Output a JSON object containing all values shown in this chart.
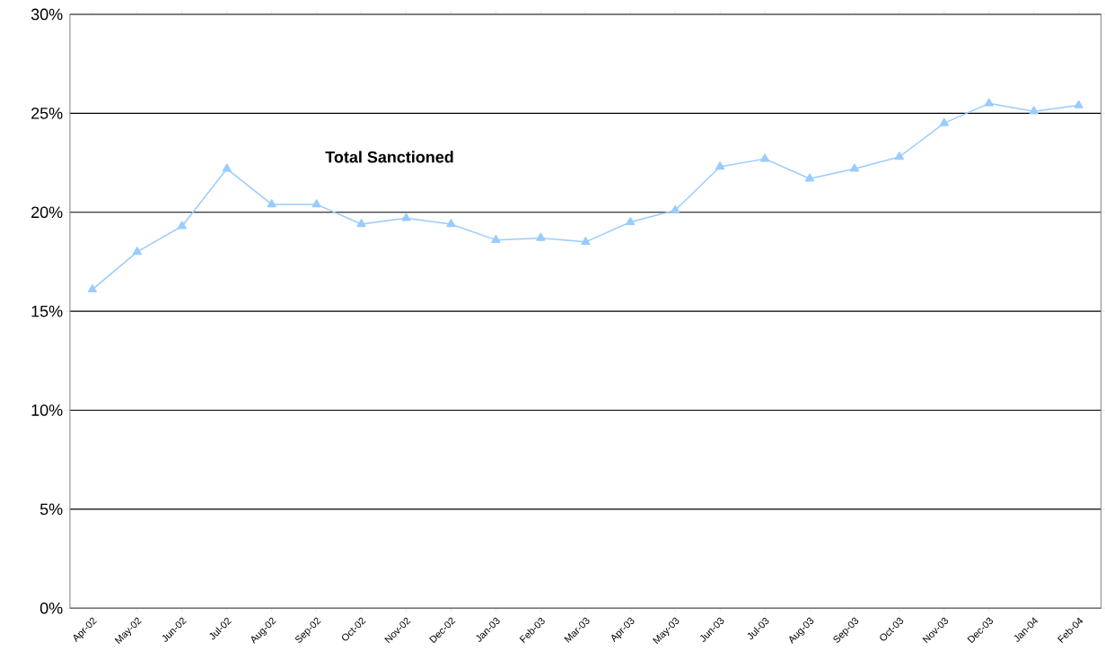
{
  "chart_data": {
    "type": "line",
    "categories": [
      "Apr-02",
      "May-02",
      "Jun-02",
      "Jul-02",
      "Aug-02",
      "Sep-02",
      "Oct-02",
      "Nov-02",
      "Dec-02",
      "Jan-03",
      "Feb-03",
      "Mar-03",
      "Apr-03",
      "May-03",
      "Jun-03",
      "Jul-03",
      "Aug-03",
      "Sep-03",
      "Oct-03",
      "Nov-03",
      "Dec-03",
      "Jan-04",
      "Feb-04"
    ],
    "series": [
      {
        "name": "Total Sanctioned",
        "color": "#99ccff",
        "values": [
          16.1,
          18.0,
          19.3,
          22.2,
          20.4,
          20.4,
          19.4,
          19.7,
          19.4,
          18.6,
          18.7,
          18.5,
          19.5,
          20.1,
          22.3,
          22.7,
          21.7,
          22.2,
          22.8,
          24.5,
          25.5,
          25.1,
          25.4
        ]
      }
    ],
    "ylim": [
      0,
      30
    ],
    "yticks": [
      {
        "value": 0,
        "label": "0%"
      },
      {
        "value": 5,
        "label": "5%"
      },
      {
        "value": 10,
        "label": "10%"
      },
      {
        "value": 15,
        "label": "15%"
      },
      {
        "value": 20,
        "label": "20%"
      },
      {
        "value": 25,
        "label": "25%"
      },
      {
        "value": 30,
        "label": "30%"
      }
    ],
    "grid": "y",
    "marker": "triangle",
    "line_style": "solid"
  }
}
